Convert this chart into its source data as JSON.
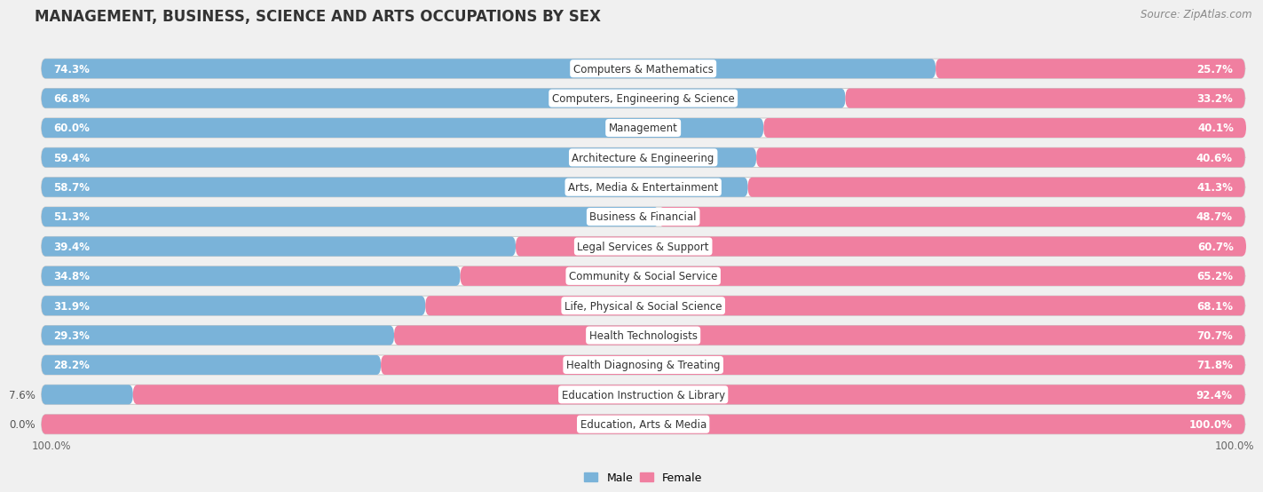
{
  "title": "MANAGEMENT, BUSINESS, SCIENCE AND ARTS OCCUPATIONS BY SEX",
  "source": "Source: ZipAtlas.com",
  "categories": [
    "Computers & Mathematics",
    "Computers, Engineering & Science",
    "Management",
    "Architecture & Engineering",
    "Arts, Media & Entertainment",
    "Business & Financial",
    "Legal Services & Support",
    "Community & Social Service",
    "Life, Physical & Social Science",
    "Health Technologists",
    "Health Diagnosing & Treating",
    "Education Instruction & Library",
    "Education, Arts & Media"
  ],
  "male": [
    74.3,
    66.8,
    60.0,
    59.4,
    58.7,
    51.3,
    39.4,
    34.8,
    31.9,
    29.3,
    28.2,
    7.6,
    0.0
  ],
  "female": [
    25.7,
    33.2,
    40.1,
    40.6,
    41.3,
    48.7,
    60.7,
    65.2,
    68.1,
    70.7,
    71.8,
    92.4,
    100.0
  ],
  "male_color": "#7ab3d9",
  "female_color": "#f07fa0",
  "background_color": "#f0f0f0",
  "bar_bg_color": "#ffffff",
  "title_fontsize": 12,
  "label_fontsize": 8.5,
  "pct_fontsize": 8.5,
  "tick_fontsize": 8.5,
  "source_fontsize": 8.5
}
